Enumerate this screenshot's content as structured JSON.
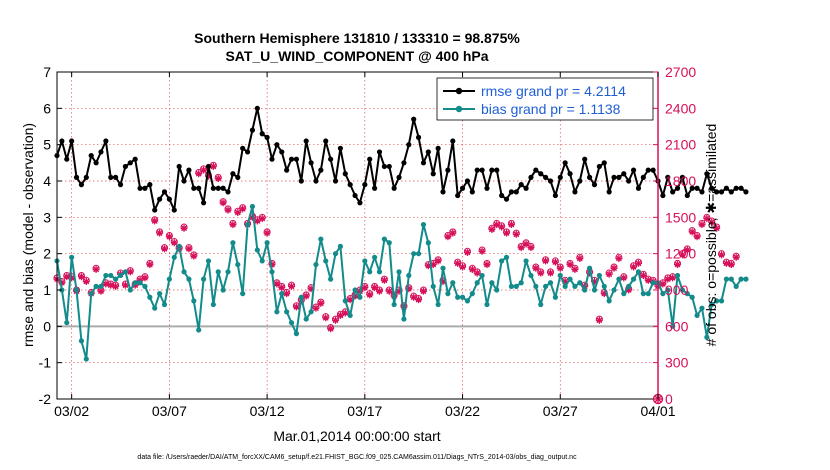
{
  "chart_data": {
    "type": "line",
    "title": "Southern Hemisphere 131810 / 133310 = 98.875%",
    "subtitle": "SAT_U_WIND_COMPONENT @ 400 hPa",
    "xlabel": "Mar.01,2014 00:00:00 start",
    "ylabel_left": "rmse and bias (model - observation)",
    "ylabel_right": "# of obs: o=possible; ✱=assimilated",
    "footnote": "data file: /Users/raeder/DAI/ATM_forcXX/CAM6_setup/f.e21.FHIST_BGC.f09_025.CAM6assim.011/Diags_NTrS_2014-03/obs_diag_output.nc",
    "x_ticks": [
      "03/02",
      "03/07",
      "03/12",
      "03/17",
      "03/22",
      "03/27",
      "04/01"
    ],
    "x_tick_days": [
      1,
      6,
      11,
      16,
      21,
      26,
      31
    ],
    "xlim_days": [
      0.25,
      31
    ],
    "ylim_left": [
      -2,
      7
    ],
    "y_ticks_left": [
      "-2",
      "-1",
      "0",
      "1",
      "2",
      "3",
      "4",
      "5",
      "6",
      "7"
    ],
    "ylim_right": [
      0,
      2700
    ],
    "y_ticks_right": [
      "0",
      "300",
      "600",
      "900",
      "1200",
      "1500",
      "1800",
      "2100",
      "2400",
      "2700"
    ],
    "zero_line": 0,
    "time_step_days": 0.25,
    "series": [
      {
        "name": "rmse grand pr = 4.2114",
        "axis": "left",
        "color": "#000000",
        "marker": "filled-circle",
        "values": [
          4.7,
          5.1,
          4.6,
          5.1,
          4.1,
          3.9,
          4.1,
          4.7,
          4.5,
          4.8,
          5.1,
          4.1,
          4.1,
          3.9,
          4.4,
          4.5,
          4.6,
          3.8,
          3.8,
          3.9,
          3.2,
          3.5,
          3.7,
          3.5,
          3.2,
          4.4,
          4.0,
          4.3,
          3.8,
          3.8,
          3.4,
          4.4,
          3.8,
          3.8,
          3.8,
          3.7,
          4.2,
          4.1,
          4.9,
          4.8,
          5.4,
          6.0,
          5.3,
          5.2,
          4.6,
          5.0,
          4.8,
          4.3,
          4.6,
          4.6,
          4.0,
          5.1,
          4.5,
          4.0,
          4.3,
          5.1,
          4.6,
          4.0,
          4.9,
          4.2,
          3.9,
          3.6,
          3.4,
          3.9,
          4.6,
          3.8,
          4.8,
          4.4,
          4.4,
          3.8,
          4.1,
          4.5,
          5.0,
          5.7,
          5.2,
          4.5,
          4.8,
          4.2,
          4.9,
          3.7,
          4.3,
          5.1,
          3.6,
          3.8,
          4.0,
          3.7,
          4.3,
          4.3,
          3.8,
          4.3,
          4.3,
          3.6,
          3.5,
          3.7,
          3.7,
          3.9,
          3.8,
          4.1,
          4.3,
          4.2,
          4.1,
          4.0,
          3.6,
          4.1,
          4.5,
          4.2,
          3.7,
          4.0,
          4.6,
          4.1,
          3.9,
          4.4,
          4.5,
          3.7,
          4.1,
          4.1,
          4.2,
          4.0,
          4.3,
          3.8,
          4.1,
          4.3,
          4.3,
          4.0,
          3.6,
          4.1,
          3.7,
          3.8,
          4.1,
          3.6,
          3.8,
          3.8,
          3.7,
          4.2,
          3.8,
          3.7,
          3.7,
          3.8,
          3.7,
          3.8,
          3.8,
          3.7
        ]
      },
      {
        "name": "bias grand pr = 1.1138",
        "axis": "left",
        "color": "#138b8b",
        "marker": "filled-circle",
        "values": [
          1.8,
          1.0,
          0.1,
          1.9,
          1.0,
          -0.4,
          -0.9,
          0.9,
          1.1,
          1.1,
          1.4,
          1.4,
          1.3,
          1.4,
          1.5,
          1.0,
          1.2,
          1.2,
          1.1,
          0.8,
          0.5,
          0.9,
          0.6,
          1.3,
          1.9,
          2.2,
          1.5,
          1.3,
          0.7,
          -0.1,
          1.3,
          1.8,
          0.6,
          1.5,
          1.0,
          1.5,
          2.3,
          1.7,
          0.9,
          2.8,
          3.3,
          2.1,
          1.8,
          2.3,
          1.5,
          0.4,
          0.9,
          0.4,
          0.1,
          -0.2,
          0.8,
          0.2,
          0.4,
          1.7,
          2.4,
          1.8,
          1.3,
          2.0,
          2.2,
          0.7,
          0.3,
          1.0,
          0.8,
          1.8,
          1.5,
          1.9,
          1.5,
          2.4,
          2.3,
          0.6,
          1.5,
          0.2,
          1.4,
          2.0,
          2.0,
          2.8,
          2.3,
          1.1,
          0.6,
          1.6,
          0.9,
          1.2,
          0.8,
          0.8,
          0.7,
          0.9,
          1.2,
          1.4,
          0.6,
          1.2,
          1.0,
          1.8,
          1.9,
          1.1,
          1.1,
          1.2,
          1.8,
          1.4,
          1.1,
          0.6,
          1.1,
          1.2,
          0.8,
          1.4,
          1.1,
          1.3,
          1.1,
          1.2,
          1.0,
          1.6,
          1.0,
          1.4,
          1.1,
          0.7,
          1.0,
          1.3,
          0.9,
          1.1,
          1.3,
          1.5,
          0.9,
          0.9,
          1.2,
          1.2,
          0.9,
          1.0,
          0.0,
          1.4,
          1.0,
          0.9,
          0.8,
          0.3,
          0.5,
          -0.3,
          0.6,
          0.7,
          0.7,
          1.3,
          1.3,
          1.1,
          1.3,
          1.3
        ]
      },
      {
        "name": "obs possible",
        "axis": "right",
        "color": "#d6105a",
        "marker": "circle",
        "values": [
          1000,
          970,
          1020,
          1010,
          900,
          1020,
          980,
          880,
          1080,
          900,
          960,
          950,
          940,
          1040,
          950,
          1060,
          950,
          990,
          1010,
          1120,
          1480,
          1380,
          1250,
          1350,
          1300,
          1250,
          1420,
          1250,
          1190,
          1870,
          1900,
          1850,
          1930,
          1830,
          1630,
          1570,
          1450,
          1550,
          1580,
          1450,
          1510,
          1480,
          1500,
          1380,
          1120,
          960,
          930,
          880,
          940,
          770,
          820,
          860,
          920,
          760,
          800,
          680,
          590,
          660,
          700,
          720,
          830,
          860,
          900,
          930,
          870,
          930,
          900,
          990,
          900,
          860,
          900,
          770,
          920,
          850,
          830,
          900,
          1110,
          1120,
          1150,
          980,
          1350,
          1380,
          1130,
          1100,
          1220,
          1080,
          1050,
          1230,
          1120,
          1410,
          1450,
          1430,
          1380,
          1450,
          1370,
          1260,
          1290,
          1260,
          1090,
          1050,
          1150,
          1050,
          1140,
          1090,
          980,
          1120,
          1080,
          1170,
          940,
          1050,
          980,
          660,
          880,
          1040,
          1090,
          1170,
          1010,
          910,
          1100,
          1130,
          1030,
          990,
          980,
          940,
          960,
          1000,
          1010,
          1120,
          1200,
          1240,
          1390,
          1350,
          1450,
          1500,
          1470,
          1420,
          1200,
          1130,
          1120,
          1180
        ]
      },
      {
        "name": "obs assimilated",
        "axis": "right",
        "color": "#d6105a",
        "marker": "asterisk",
        "values": [
          990,
          960,
          1010,
          1000,
          890,
          1010,
          970,
          870,
          1070,
          890,
          950,
          940,
          930,
          1030,
          940,
          1050,
          940,
          980,
          1000,
          1110,
          1470,
          1370,
          1240,
          1340,
          1290,
          1240,
          1410,
          1240,
          1180,
          1860,
          1890,
          1840,
          1920,
          1820,
          1620,
          1560,
          1440,
          1540,
          1570,
          1440,
          1500,
          1470,
          1490,
          1370,
          1110,
          950,
          920,
          870,
          930,
          760,
          810,
          850,
          910,
          750,
          790,
          670,
          580,
          650,
          690,
          710,
          820,
          850,
          890,
          920,
          860,
          920,
          890,
          980,
          890,
          850,
          890,
          760,
          910,
          840,
          820,
          890,
          1100,
          1110,
          1140,
          970,
          1340,
          1370,
          1120,
          1090,
          1210,
          1070,
          1040,
          1220,
          1110,
          1400,
          1440,
          1420,
          1370,
          1440,
          1360,
          1250,
          1280,
          1250,
          1080,
          1040,
          1140,
          1040,
          1130,
          1080,
          970,
          1110,
          1070,
          1160,
          930,
          1040,
          970,
          650,
          870,
          1030,
          1080,
          1160,
          1000,
          900,
          1090,
          1120,
          1020,
          980,
          970,
          930,
          950,
          990,
          1000,
          1110,
          1190,
          1230,
          1380,
          1340,
          1440,
          1490,
          1460,
          1410,
          1190,
          1120,
          1110,
          1170
        ]
      }
    ],
    "final_point": {
      "day": 31,
      "right_value": 0,
      "marker": "asterisk-circle",
      "color": "#d6105a"
    },
    "legend": {
      "placement": "top-right",
      "entries": [
        {
          "label": "rmse grand pr = 4.2114",
          "color": "#000000"
        },
        {
          "label": "bias grand pr = 1.1138",
          "color": "#138b8b"
        }
      ]
    },
    "colors": {
      "axis_left": "#000000",
      "axis_right": "#d6105a",
      "grid": "#e24d4d",
      "zero_line": "#aaaaaa",
      "legend_text": "#1f5fd6"
    },
    "grid": "on"
  }
}
